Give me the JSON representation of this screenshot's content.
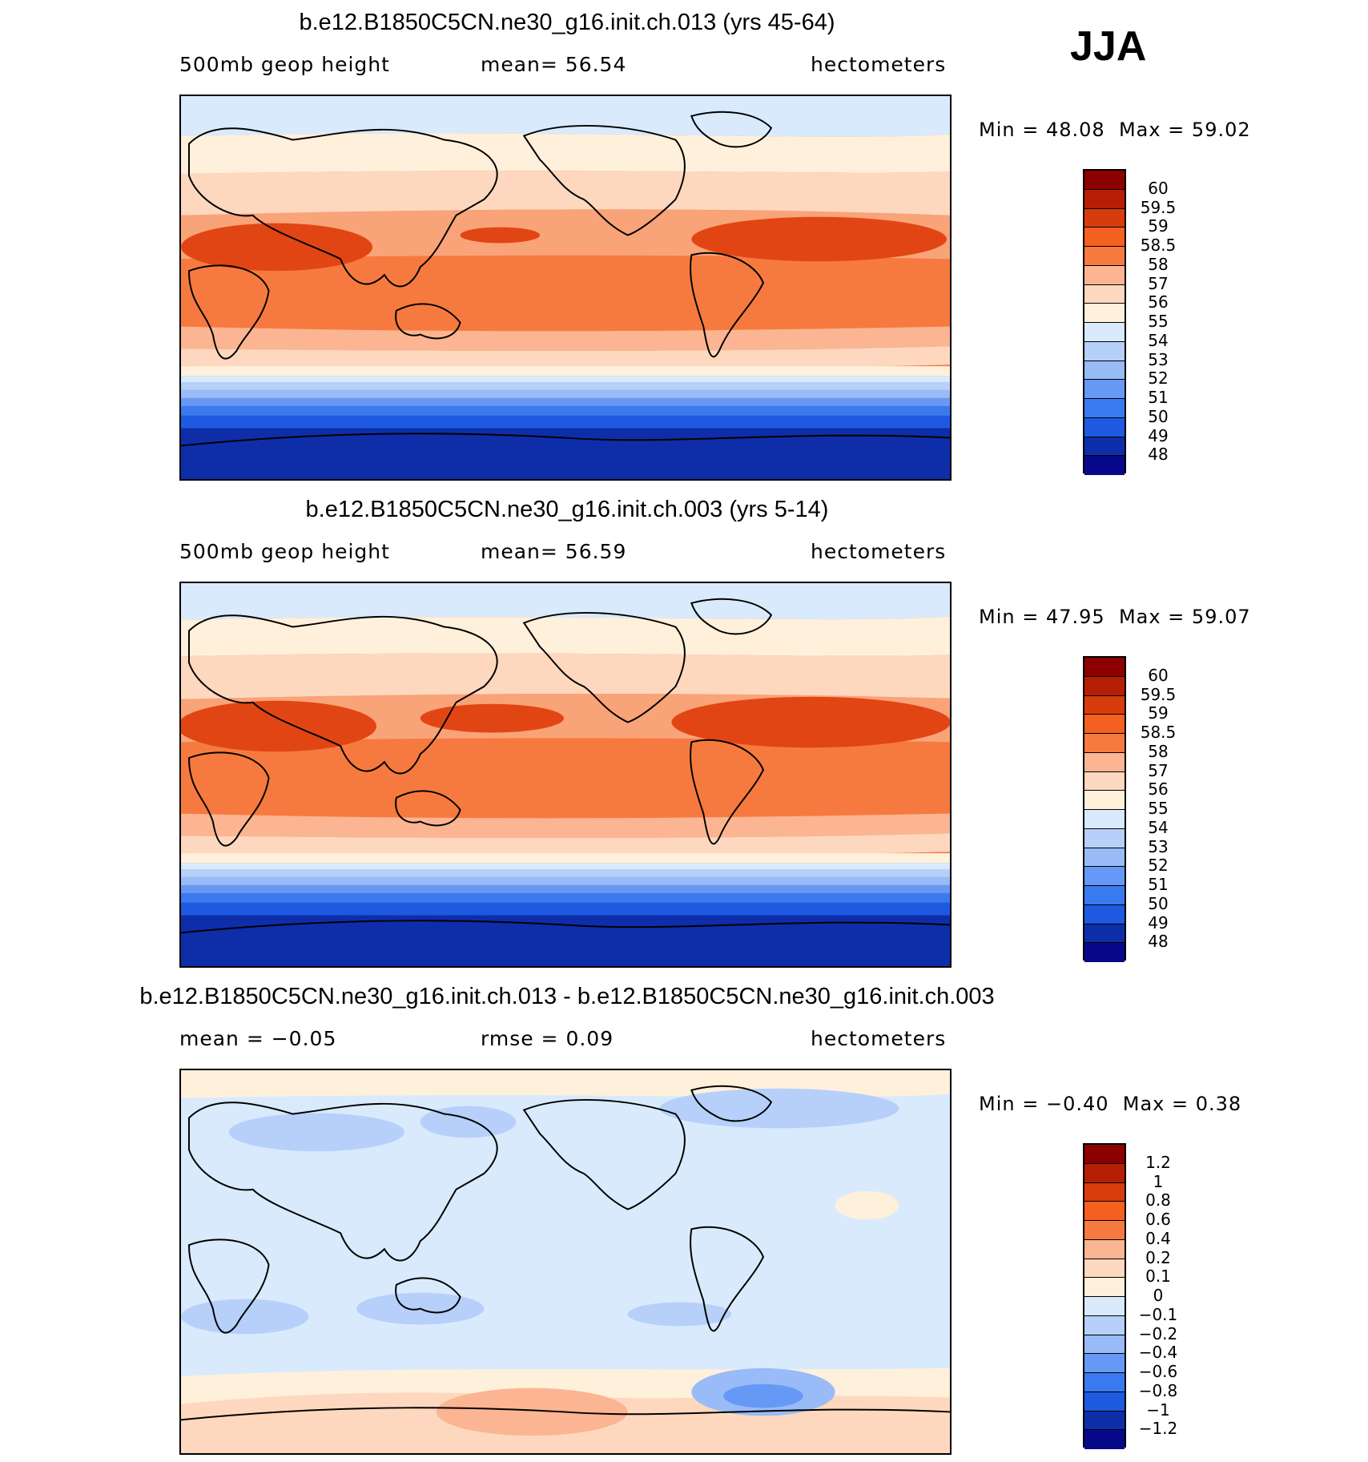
{
  "season": "JJA",
  "colors": {
    "diverging": [
      "#08088a",
      "#0d2ea8",
      "#1446c8",
      "#1d5ae0",
      "#3a7af0",
      "#6699f5",
      "#99bbf7",
      "#c8dcfa",
      "#d9eafd",
      "#fff0dc",
      "#fdd8bf",
      "#fbb592",
      "#f9905f",
      "#f67a3f",
      "#f4601f",
      "#e24514",
      "#c72a0a",
      "#8c0000"
    ]
  },
  "chart_data": [
    {
      "type": "heatmap",
      "title": "b.e12.B1850C5CN.ne30_g16.init.ch.013 (yrs 45-64)",
      "left_label": "500mb geop height",
      "center_label": "mean=  56.54",
      "right_label": "hectometers",
      "min_text": "Min =  48.08",
      "max_text": "Max =  59.02",
      "min": 48.08,
      "max": 59.02,
      "mean": 56.54,
      "units": "hectometers",
      "legend": {
        "labels": [
          "60",
          "59.5",
          "59",
          "58.5",
          "58",
          "57",
          "56",
          "55",
          "54",
          "53",
          "52",
          "51",
          "50",
          "49",
          "48"
        ],
        "colors": [
          "#8c0000",
          "#b51e05",
          "#d83c0c",
          "#f4601f",
          "#f67a3f",
          "#fbb592",
          "#fdd8bf",
          "#fff0dc",
          "#d9eafd",
          "#b6d0fa",
          "#99bbf7",
          "#6699f5",
          "#3a7af0",
          "#1d5ae0",
          "#0d2ea8",
          "#08088a"
        ]
      }
    },
    {
      "type": "heatmap",
      "title": "b.e12.B1850C5CN.ne30_g16.init.ch.003 (yrs 5-14)",
      "left_label": "500mb geop height",
      "center_label": "mean=  56.59",
      "right_label": "hectometers",
      "min_text": "Min =  47.95",
      "max_text": "Max =  59.07",
      "min": 47.95,
      "max": 59.07,
      "mean": 56.59,
      "units": "hectometers",
      "legend": {
        "labels": [
          "60",
          "59.5",
          "59",
          "58.5",
          "58",
          "57",
          "56",
          "55",
          "54",
          "53",
          "52",
          "51",
          "50",
          "49",
          "48"
        ],
        "colors": [
          "#8c0000",
          "#b51e05",
          "#d83c0c",
          "#f4601f",
          "#f67a3f",
          "#fbb592",
          "#fdd8bf",
          "#fff0dc",
          "#d9eafd",
          "#b6d0fa",
          "#99bbf7",
          "#6699f5",
          "#3a7af0",
          "#1d5ae0",
          "#0d2ea8",
          "#08088a"
        ]
      }
    },
    {
      "type": "heatmap",
      "title": "b.e12.B1850C5CN.ne30_g16.init.ch.013 - b.e12.B1850C5CN.ne30_g16.init.ch.003",
      "left_label": "mean =  −0.05",
      "center_label": "rmse =   0.09",
      "right_label": "hectometers",
      "min_text": "Min =  −0.40",
      "max_text": "Max =   0.38",
      "min": -0.4,
      "max": 0.38,
      "mean": -0.05,
      "rmse": 0.09,
      "units": "hectometers",
      "legend": {
        "labels": [
          "1.2",
          "1",
          "0.8",
          "0.6",
          "0.4",
          "0.2",
          "0.1",
          "0",
          "−0.1",
          "−0.2",
          "−0.4",
          "−0.6",
          "−0.8",
          "−1",
          "−1.2"
        ],
        "colors": [
          "#8c0000",
          "#b51e05",
          "#d83c0c",
          "#f4601f",
          "#f67a3f",
          "#fbb592",
          "#fdd8bf",
          "#fff0dc",
          "#d9eafd",
          "#b6d0fa",
          "#99bbf7",
          "#6699f5",
          "#3a7af0",
          "#1d5ae0",
          "#0d2ea8",
          "#08088a"
        ]
      }
    }
  ]
}
